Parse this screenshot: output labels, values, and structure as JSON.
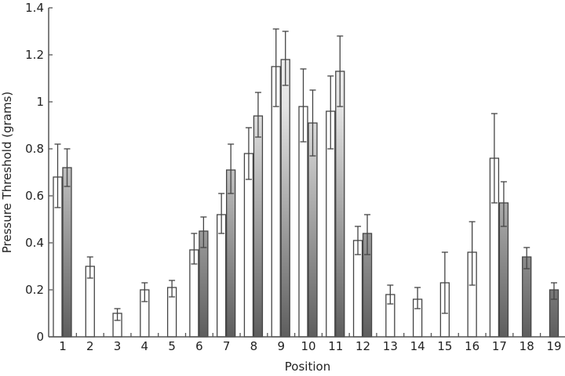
{
  "chart_data": {
    "type": "bar",
    "title": "",
    "xlabel": "Position",
    "ylabel": "Pressure Threshold (grams)",
    "ylim": [
      0,
      1.4
    ],
    "yticks": [
      "0",
      "0.2",
      "0.4",
      "0.6",
      "0.8",
      "1",
      "1.2",
      "1.4"
    ],
    "grid": false,
    "legend": null,
    "categories": [
      "1",
      "2",
      "3",
      "4",
      "5",
      "6",
      "7",
      "8",
      "9",
      "10",
      "11",
      "12",
      "13",
      "14",
      "15",
      "16",
      "17",
      "18",
      "19"
    ],
    "series": [
      {
        "name": "white bars",
        "style": "open",
        "values": [
          0.68,
          0.3,
          0.1,
          0.2,
          0.21,
          0.37,
          0.52,
          0.78,
          1.15,
          0.98,
          0.96,
          0.41,
          0.18,
          0.16,
          0.23,
          0.36,
          0.76,
          null,
          null
        ],
        "err_high": [
          0.82,
          0.34,
          0.12,
          0.23,
          0.24,
          0.44,
          0.61,
          0.89,
          1.31,
          1.14,
          1.11,
          0.47,
          0.22,
          0.21,
          0.36,
          0.49,
          0.95,
          null,
          null
        ],
        "err_low": [
          0.55,
          0.25,
          0.07,
          0.15,
          0.17,
          0.31,
          0.44,
          0.67,
          0.98,
          0.83,
          0.8,
          0.35,
          0.14,
          0.12,
          0.1,
          0.22,
          0.57,
          null,
          null
        ]
      },
      {
        "name": "gradient bars",
        "style": "gray-gradient",
        "values": [
          0.72,
          null,
          null,
          null,
          null,
          0.45,
          0.71,
          0.94,
          1.18,
          0.91,
          1.13,
          0.44,
          null,
          null,
          null,
          null,
          0.57,
          0.34,
          0.2
        ],
        "err_high": [
          0.8,
          null,
          null,
          null,
          null,
          0.51,
          0.82,
          1.04,
          1.3,
          1.05,
          1.28,
          0.52,
          null,
          null,
          null,
          null,
          0.66,
          0.38,
          0.23
        ],
        "err_low": [
          0.64,
          null,
          null,
          null,
          null,
          0.38,
          0.61,
          0.85,
          1.07,
          0.77,
          0.98,
          0.35,
          null,
          null,
          null,
          null,
          0.47,
          0.29,
          0.16
        ]
      }
    ]
  },
  "colors": {
    "axis": "#555555",
    "bar_stroke": "#444444",
    "open_fill": "#ffffff",
    "gradient_top": "#f0f0f0",
    "gradient_bottom": "#5e5e5e",
    "error_bar": "#444444"
  }
}
